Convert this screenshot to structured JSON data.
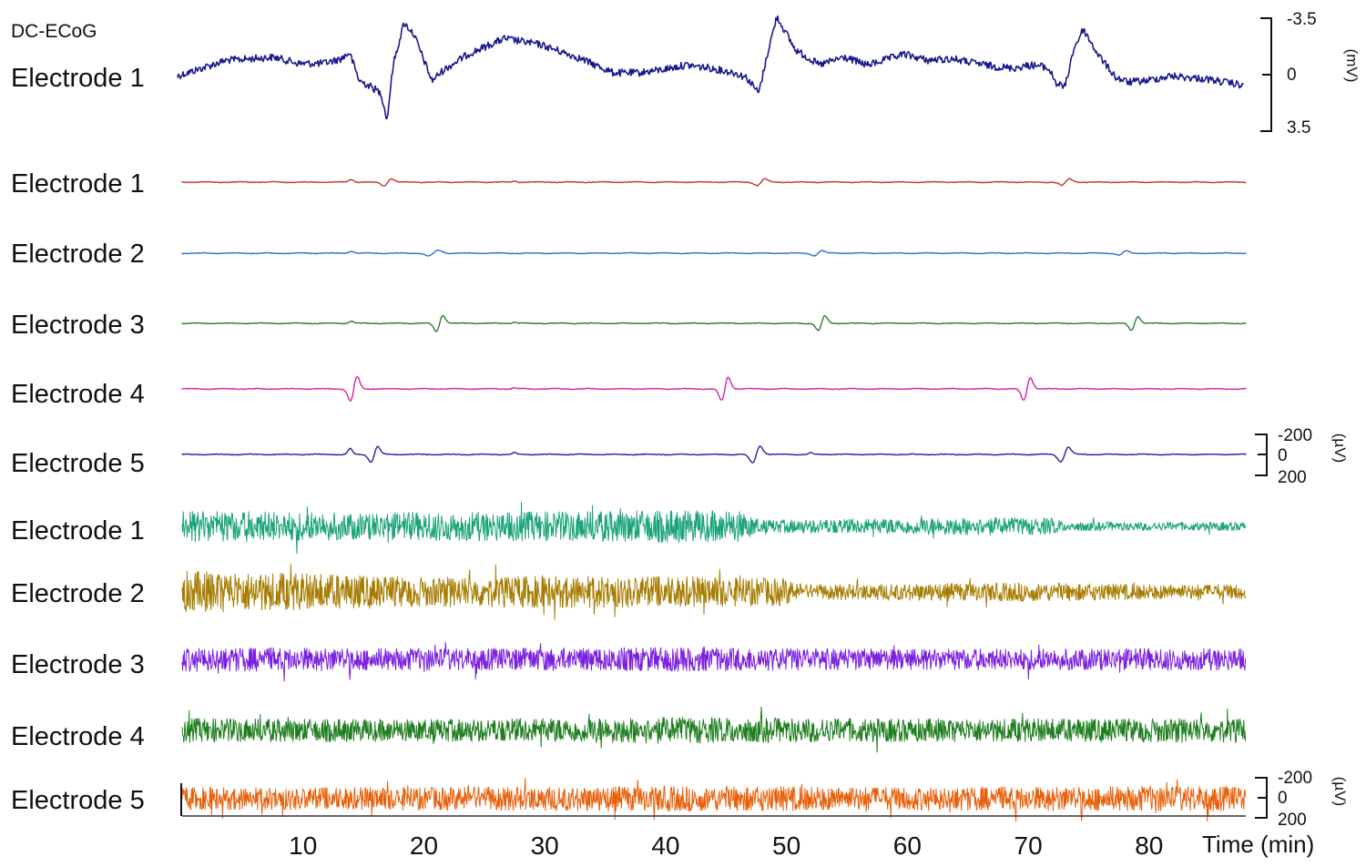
{
  "chart_data": {
    "type": "line",
    "title": "DC-ECoG",
    "xlabel": "Time (min)",
    "xlim": [
      0,
      88
    ],
    "xticks": [
      10,
      20,
      30,
      40,
      50,
      60,
      70,
      80
    ],
    "panels": [
      {
        "id": "dc",
        "scale_unit": "(mV)",
        "scale_ticks": [
          "-3.5",
          "0",
          "3.5"
        ],
        "series": [
          {
            "name": "Electrode 1",
            "color": "#1a1a8c",
            "x": [
              0,
              4,
              8,
              10,
              12,
              13.5,
              14.2,
              15,
              16,
              16.8,
              17.3,
              17.8,
              18.7,
              19.5,
              21,
              22,
              24,
              27,
              30,
              33,
              36,
              38,
              40,
              42,
              44,
              46,
              47,
              47.5,
              48,
              48.8,
              49.5,
              51,
              53,
              55,
              57,
              60,
              62,
              64,
              66,
              67.5,
              69,
              70.5,
              71.5,
              72,
              72.6,
              73.3,
              74,
              74.8,
              76,
              77.5,
              78.5,
              80,
              82,
              85,
              88
            ],
            "y": [
              -0.2,
              0.8,
              1.0,
              0.6,
              0.6,
              0.9,
              1.3,
              -0.5,
              -0.9,
              -1.3,
              -3.0,
              0.5,
              3.2,
              2.5,
              -0.5,
              0.2,
              1.2,
              2.2,
              1.8,
              1.0,
              0.0,
              0.0,
              0.2,
              0.5,
              0.3,
              0.0,
              -0.3,
              -0.8,
              -1.3,
              1.5,
              3.6,
              1.5,
              0.5,
              1.0,
              0.5,
              1.2,
              0.8,
              0.9,
              0.6,
              0.4,
              0.3,
              0.5,
              0.4,
              0.2,
              -0.7,
              -0.9,
              1.5,
              2.8,
              1.2,
              -0.3,
              -0.6,
              -0.5,
              -0.2,
              -0.4,
              -0.8
            ]
          }
        ]
      },
      {
        "id": "ac",
        "scale_unit": "(µV)",
        "scale_ticks": [
          "-200",
          "0",
          "200"
        ],
        "series": [
          {
            "name": "Electrode 1",
            "color": "#c0392b",
            "events": [
              {
                "t": 14.0,
                "a": 25,
                "s": 0.3,
                "k": 1
              },
              {
                "t": 17.0,
                "a": 45,
                "s": 0.4,
                "k": 2
              },
              {
                "t": 27.5,
                "a": 10,
                "s": 0.2,
                "k": 1
              },
              {
                "t": 47.9,
                "a": 40,
                "s": 0.4,
                "k": 2
              },
              {
                "t": 73.1,
                "a": 40,
                "s": 0.4,
                "k": 2
              }
            ]
          },
          {
            "name": "Electrode 2",
            "color": "#2f6fd6",
            "events": [
              {
                "t": 14.0,
                "a": 20,
                "s": 0.3,
                "k": 1
              },
              {
                "t": 20.8,
                "a": 35,
                "s": 0.5,
                "k": 2
              },
              {
                "t": 52.6,
                "a": 30,
                "s": 0.4,
                "k": 2
              },
              {
                "t": 77.8,
                "a": 25,
                "s": 0.4,
                "k": 2
              }
            ]
          },
          {
            "name": "Electrode 3",
            "color": "#2e7d32",
            "events": [
              {
                "t": 14.0,
                "a": 20,
                "s": 0.25,
                "k": 1
              },
              {
                "t": 21.3,
                "a": 100,
                "s": 0.35,
                "k": 2
              },
              {
                "t": 27.5,
                "a": 12,
                "s": 0.2,
                "k": 1
              },
              {
                "t": 52.9,
                "a": 90,
                "s": 0.35,
                "k": 2
              },
              {
                "t": 78.8,
                "a": 85,
                "s": 0.35,
                "k": 2
              }
            ]
          },
          {
            "name": "Electrode 4",
            "color": "#d6249f",
            "events": [
              {
                "t": 14.2,
                "a": 150,
                "s": 0.35,
                "k": 2
              },
              {
                "t": 27.5,
                "a": 12,
                "s": 0.2,
                "k": 1
              },
              {
                "t": 44.9,
                "a": 145,
                "s": 0.35,
                "k": 2
              },
              {
                "t": 69.9,
                "a": 140,
                "s": 0.35,
                "k": 2
              }
            ]
          },
          {
            "name": "Electrode 5",
            "color": "#2b1f9e",
            "events": [
              {
                "t": 13.9,
                "a": 55,
                "s": 0.25,
                "k": 1
              },
              {
                "t": 15.9,
                "a": 95,
                "s": 0.35,
                "k": 2
              },
              {
                "t": 27.5,
                "a": 20,
                "s": 0.2,
                "k": 1
              },
              {
                "t": 47.5,
                "a": 105,
                "s": 0.4,
                "k": 2
              },
              {
                "t": 52.0,
                "a": 15,
                "s": 0.2,
                "k": 1
              },
              {
                "t": 73.0,
                "a": 90,
                "s": 0.4,
                "k": 2
              }
            ]
          }
        ]
      },
      {
        "id": "hf",
        "scale_unit": "(µV)",
        "scale_ticks": [
          "-200",
          "0",
          "200"
        ],
        "series": [
          {
            "name": "Electrode 1",
            "color": "#1aa37a",
            "env_t": [
              0,
              10,
              15,
              20,
              30,
              40,
              46,
              48,
              55,
              65,
              72,
              73,
              80,
              88
            ],
            "env_a": [
              150,
              140,
              125,
              135,
              140,
              155,
              150,
              60,
              70,
              85,
              80,
              45,
              40,
              40
            ]
          },
          {
            "name": "Electrode 2",
            "color": "#a67c00",
            "env_t": [
              0,
              10,
              20,
              30,
              40,
              50,
              51,
              60,
              70,
              80,
              88
            ],
            "env_a": [
              200,
              180,
              140,
              150,
              150,
              130,
              70,
              80,
              90,
              70,
              70
            ]
          },
          {
            "name": "Electrode 3",
            "color": "#7b1fe0",
            "env_t": [
              0,
              20,
              40,
              60,
              88
            ],
            "env_a": [
              115,
              105,
              115,
              100,
              105
            ]
          },
          {
            "name": "Electrode 4",
            "color": "#1e7d1e",
            "env_t": [
              0,
              20,
              40,
              60,
              88
            ],
            "env_a": [
              115,
              105,
              125,
              110,
              115
            ]
          },
          {
            "name": "Electrode 5",
            "color": "#e8600a",
            "env_t": [
              0,
              20,
              40,
              60,
              80,
              88
            ],
            "env_a": [
              105,
              110,
              120,
              110,
              120,
              120
            ]
          }
        ]
      }
    ]
  }
}
